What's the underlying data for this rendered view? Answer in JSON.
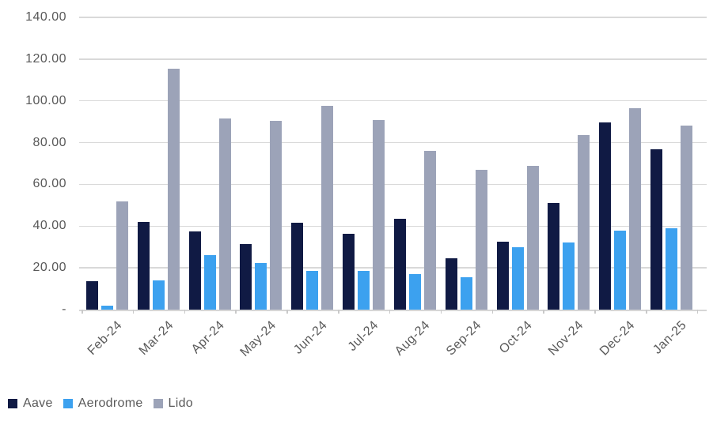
{
  "chart_data": {
    "type": "bar",
    "title": "",
    "xlabel": "",
    "ylabel": "",
    "categories": [
      "Feb-24",
      "Mar-24",
      "Apr-24",
      "May-24",
      "Jun-24",
      "Jul-24",
      "Aug-24",
      "Sep-24",
      "Oct-24",
      "Nov-24",
      "Dec-24",
      "Jan-25"
    ],
    "series": [
      {
        "name": "Aave",
        "color": "#101a44",
        "values": [
          13.5,
          42,
          37.5,
          31.5,
          41.5,
          36.5,
          43.5,
          24.5,
          32.5,
          51,
          89.5,
          77
        ]
      },
      {
        "name": "Aerodrome",
        "color": "#3ca1ef",
        "values": [
          2,
          14,
          26,
          22.5,
          18.5,
          18.5,
          17,
          15.5,
          30,
          32,
          38,
          39
        ]
      },
      {
        "name": "Lido",
        "color": "#9ca3b8",
        "values": [
          52,
          115.5,
          91.5,
          90.5,
          97.5,
          91,
          76,
          67,
          69,
          83.5,
          96.5,
          88
        ]
      }
    ],
    "ylim": [
      0,
      140
    ],
    "yticks": {
      "values": [
        0,
        20,
        40,
        60,
        80,
        100,
        120,
        140
      ],
      "labels": [
        "-",
        "20.00",
        "40.00",
        "60.00",
        "80.00",
        "100.00",
        "120.00",
        "140.00"
      ]
    },
    "grid": true,
    "legend_position": "bottom-left"
  },
  "colors": {
    "background": "#ffffff",
    "gridline": "#d9d9d9",
    "axis_line": "#d6d6d6",
    "axis_text": "#595959"
  }
}
